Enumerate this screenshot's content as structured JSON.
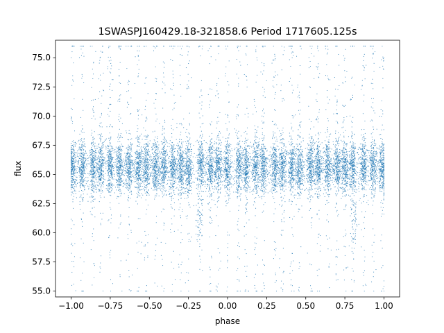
{
  "chart_data": {
    "type": "scatter",
    "title": "1SWASPJ160429.18-321858.6 Period 1717605.125s",
    "xlabel": "phase",
    "ylabel": "flux",
    "xlim": [
      -1.1,
      1.1
    ],
    "ylim": [
      54.5,
      76.5
    ],
    "grid": false,
    "legend": "none",
    "marker_color": "#1f77b4",
    "x_ticks": [
      {
        "value": -1.0,
        "label": "−1.00"
      },
      {
        "value": -0.75,
        "label": "−0.75"
      },
      {
        "value": -0.5,
        "label": "−0.50"
      },
      {
        "value": -0.25,
        "label": "−0.25"
      },
      {
        "value": 0.0,
        "label": "0.00"
      },
      {
        "value": 0.25,
        "label": "0.25"
      },
      {
        "value": 0.5,
        "label": "0.50"
      },
      {
        "value": 0.75,
        "label": "0.75"
      },
      {
        "value": 1.0,
        "label": "1.00"
      }
    ],
    "y_ticks": [
      {
        "value": 55.0,
        "label": "55.0"
      },
      {
        "value": 57.5,
        "label": "57.5"
      },
      {
        "value": 60.0,
        "label": "60.0"
      },
      {
        "value": 62.5,
        "label": "62.5"
      },
      {
        "value": 65.0,
        "label": "65.0"
      },
      {
        "value": 67.5,
        "label": "67.5"
      },
      {
        "value": 70.0,
        "label": "70.0"
      },
      {
        "value": 72.5,
        "label": "72.5"
      },
      {
        "value": 75.0,
        "label": "75.0"
      }
    ],
    "series": [
      {
        "x_range": [
          -1.0,
          1.0
        ],
        "median_flux": 65.6,
        "flux_range": [
          55.0,
          76.0
        ],
        "clump_phases": [
          -0.99,
          -0.93,
          -0.86,
          -0.81,
          -0.75,
          -0.69,
          -0.63,
          -0.57,
          -0.52,
          -0.46,
          -0.41,
          -0.35,
          -0.3,
          -0.25,
          -0.17,
          -0.11,
          -0.06,
          0.0,
          0.07,
          0.12,
          0.18,
          0.23,
          0.3,
          0.35,
          0.41,
          0.46,
          0.53,
          0.58,
          0.64,
          0.7,
          0.75,
          0.8,
          0.87,
          0.93,
          0.99
        ],
        "low_dips": [
          {
            "phase": -0.18,
            "flux": 61.0
          },
          {
            "phase": 0.81,
            "flux": 61.0
          }
        ]
      }
    ]
  }
}
